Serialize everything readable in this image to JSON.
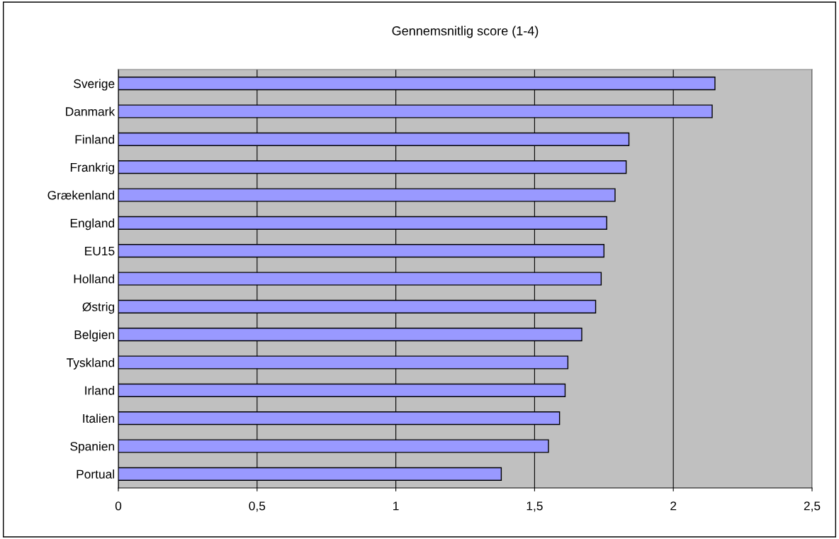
{
  "chart_data": {
    "type": "bar",
    "orientation": "horizontal",
    "title": "Gennemsnitlig score (1-4)",
    "categories": [
      "Sverige",
      "Danmark",
      "Finland",
      "Frankrig",
      "Grækenland",
      "England",
      "EU15",
      "Holland",
      "Østrig",
      "Belgien",
      "Tyskland",
      "Irland",
      "Italien",
      "Spanien",
      "Portual"
    ],
    "values": [
      2.15,
      2.14,
      1.84,
      1.83,
      1.79,
      1.76,
      1.75,
      1.74,
      1.72,
      1.67,
      1.62,
      1.61,
      1.59,
      1.55,
      1.38
    ],
    "color": "#9999ff",
    "xlim": [
      0,
      2.5
    ],
    "xticks": [
      0,
      {
        "value": 0.5,
        "label": "0,5"
      },
      1,
      {
        "value": 1.5,
        "label": "1,5"
      },
      2,
      {
        "value": 2.5,
        "label": "2,5"
      }
    ],
    "grid": "x"
  }
}
